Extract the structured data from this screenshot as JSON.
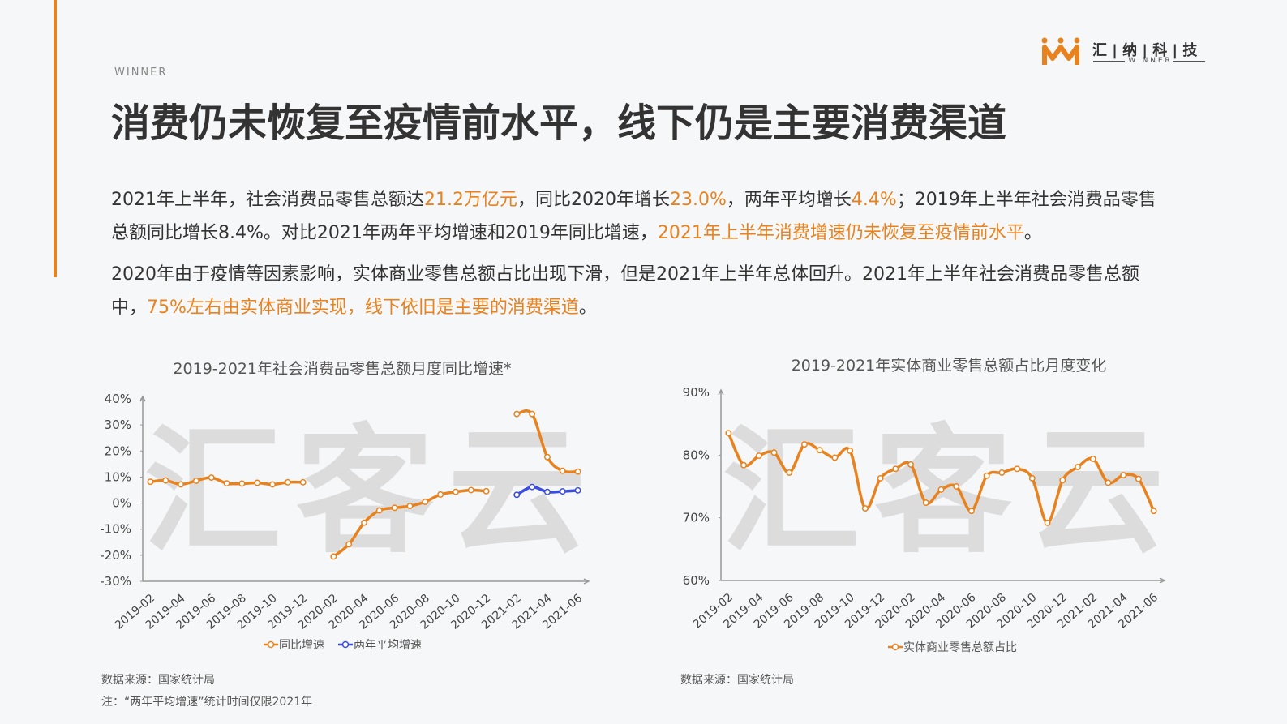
{
  "header": {
    "kicker": "WINNER",
    "title": "消费仍未恢复至疫情前水平，线下仍是主要消费渠道"
  },
  "logo": {
    "name": "汇 | 纳 | 科 | 技",
    "sub": "W I N N E R"
  },
  "paragraphs": [
    [
      "2021年上半年，社会消费品零售总额达",
      "21.2万亿元",
      "，同比2020年增长",
      "23.0%",
      "，两年平均增长",
      "4.4%",
      "；2019年上半年社会消费品零售总额同比增长8.4%。对比2021年两年平均增速和2019年同比增速，",
      "2021年上半年消费增速仍未恢复至疫情前水平",
      "。"
    ],
    [
      "2020年由于疫情等因素影响，实体商业零售总额占比出现下滑，但是2021年上半年总体回升。2021年上半年社会消费品零售总额中，",
      "75%左右由实体商业实现，线下依旧是主要的消费渠道",
      "。"
    ]
  ],
  "watermark": "汇客云",
  "footnotes": {
    "source1": "数据来源：国家统计局",
    "note1": "注：“两年平均增速”统计时间仅限2021年",
    "source2": "数据来源：国家统计局"
  },
  "chart_data": [
    {
      "type": "line",
      "title": "2019-2021年社会消费品零售总额月度同比增速*",
      "categories": [
        "2019-02",
        null,
        "2019-04",
        null,
        "2019-06",
        null,
        "2019-08",
        null,
        "2019-10",
        null,
        "2019-12",
        null,
        "2020-02",
        null,
        "2020-04",
        null,
        "2020-06",
        null,
        "2020-08",
        null,
        "2020-10",
        null,
        "2020-12",
        null,
        "2021-02",
        null,
        "2021-04",
        null,
        "2021-06"
      ],
      "series": [
        {
          "name": "同比增速",
          "color": "#e8821e",
          "values": [
            8.2,
            8.7,
            7.2,
            8.6,
            9.8,
            7.6,
            7.5,
            7.8,
            7.2,
            8.0,
            8.0,
            null,
            -20.5,
            -15.8,
            -7.5,
            -2.8,
            -1.8,
            -1.1,
            0.5,
            3.3,
            4.3,
            5.0,
            4.6,
            null,
            34.2,
            34.2,
            17.7,
            12.4,
            12.1
          ]
        },
        {
          "name": "两年平均增速",
          "color": "#3b4de0",
          "values": [
            null,
            null,
            null,
            null,
            null,
            null,
            null,
            null,
            null,
            null,
            null,
            null,
            null,
            null,
            null,
            null,
            null,
            null,
            null,
            null,
            null,
            null,
            null,
            null,
            3.2,
            6.2,
            4.3,
            4.5,
            4.9
          ]
        }
      ],
      "ylim": [
        -30,
        40
      ],
      "yticks": [
        {
          "value": -30,
          "label": "-30%"
        },
        {
          "value": -20,
          "label": "-20%"
        },
        {
          "value": -10,
          "label": "-10%"
        },
        {
          "value": 0,
          "label": "0%"
        },
        {
          "value": 10,
          "label": "10%"
        },
        {
          "value": 20,
          "label": "20%"
        },
        {
          "value": 30,
          "label": "30%"
        },
        {
          "value": 40,
          "label": "40%"
        }
      ],
      "grid": false
    },
    {
      "type": "line",
      "title": "2019-2021年实体商业零售总额占比月度变化",
      "categories": [
        "2019-02",
        null,
        "2019-04",
        null,
        "2019-06",
        null,
        "2019-08",
        null,
        "2019-10",
        null,
        "2019-12",
        null,
        "2020-02",
        null,
        "2020-04",
        null,
        "2020-06",
        null,
        "2020-08",
        null,
        "2020-10",
        null,
        "2020-12",
        null,
        "2021-02",
        null,
        "2021-04",
        null,
        "2021-06"
      ],
      "series": [
        {
          "name": "实体商业零售总额占比",
          "color": "#e8821e",
          "values": [
            83.5,
            78.4,
            79.9,
            80.4,
            77.2,
            81.7,
            80.8,
            79.6,
            80.7,
            71.5,
            76.3,
            77.8,
            78.5,
            72.4,
            74.5,
            75.0,
            71.1,
            76.7,
            77.2,
            77.8,
            76.3,
            69.2,
            76.0,
            78.1,
            79.4,
            75.6,
            76.8,
            76.2,
            71.1
          ]
        }
      ],
      "ylim": [
        60,
        90
      ],
      "yticks": [
        {
          "value": 60,
          "label": "60%"
        },
        {
          "value": 70,
          "label": "70%"
        },
        {
          "value": 80,
          "label": "80%"
        },
        {
          "value": 90,
          "label": "90%"
        }
      ],
      "grid": false
    }
  ]
}
